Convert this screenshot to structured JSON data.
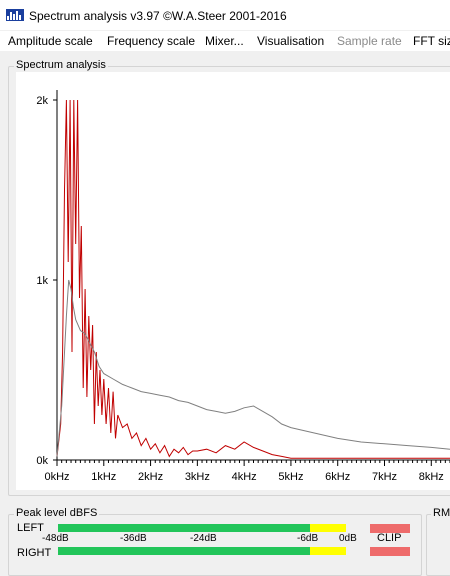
{
  "window": {
    "title": "Spectrum analysis v3.97  ©W.A.Steer 2001-2016",
    "icon": "spectrum-app-icon"
  },
  "menu": [
    {
      "label": "Amplitude scale",
      "enabled": true
    },
    {
      "label": "Frequency scale",
      "enabled": true
    },
    {
      "label": "Mixer...",
      "enabled": true
    },
    {
      "label": "Visualisation",
      "enabled": true
    },
    {
      "label": "Sample rate",
      "enabled": false
    },
    {
      "label": "FFT size",
      "enabled": true
    }
  ],
  "spectrum_panel": {
    "label": "Spectrum analysis"
  },
  "chart_data": {
    "type": "line",
    "title": "",
    "xlabel": "",
    "ylabel": "",
    "xlim": [
      0,
      8.4
    ],
    "ylim": [
      0,
      2.0
    ],
    "x_ticks": [
      "0kHz",
      "1kHz",
      "2kHz",
      "3kHz",
      "4kHz",
      "5kHz",
      "6kHz",
      "7kHz",
      "8kHz"
    ],
    "y_ticks": [
      "2k",
      "1k",
      "0k"
    ],
    "grid": false,
    "series": [
      {
        "color": "#c00000",
        "x": [
          0.0,
          0.08,
          0.12,
          0.16,
          0.2,
          0.24,
          0.28,
          0.32,
          0.36,
          0.4,
          0.44,
          0.48,
          0.52,
          0.56,
          0.6,
          0.64,
          0.68,
          0.72,
          0.76,
          0.8,
          0.84,
          0.88,
          0.92,
          0.96,
          1.0,
          1.05,
          1.1,
          1.15,
          1.2,
          1.25,
          1.3,
          1.4,
          1.5,
          1.6,
          1.7,
          1.8,
          1.9,
          2.0,
          2.1,
          2.2,
          2.3,
          2.4,
          2.5,
          2.6,
          2.7,
          2.8,
          2.9,
          3.0,
          3.2,
          3.4,
          3.6,
          3.8,
          4.0,
          4.2,
          4.4,
          4.6,
          4.8,
          5.0,
          5.5,
          6.0,
          6.5,
          7.0,
          7.5,
          8.0,
          8.4
        ],
        "y": [
          0.02,
          0.2,
          0.6,
          1.5,
          2.0,
          1.1,
          2.0,
          0.6,
          2.0,
          1.2,
          2.0,
          0.9,
          1.3,
          0.4,
          0.95,
          0.35,
          0.8,
          0.5,
          0.75,
          0.2,
          0.6,
          0.3,
          0.5,
          0.25,
          0.45,
          0.2,
          0.4,
          0.15,
          0.38,
          0.12,
          0.25,
          0.18,
          0.2,
          0.12,
          0.15,
          0.08,
          0.12,
          0.06,
          0.09,
          0.04,
          0.08,
          0.02,
          0.06,
          0.04,
          0.07,
          0.03,
          0.05,
          0.05,
          0.06,
          0.04,
          0.08,
          0.06,
          0.1,
          0.07,
          0.05,
          0.03,
          0.02,
          0.01,
          0.01,
          0.01,
          0.01,
          0.01,
          0.01,
          0.01,
          0.01
        ]
      },
      {
        "color": "#808080",
        "x": [
          0.0,
          0.1,
          0.2,
          0.25,
          0.3,
          0.35,
          0.4,
          0.5,
          0.6,
          0.7,
          0.8,
          0.9,
          1.0,
          1.2,
          1.4,
          1.6,
          1.8,
          2.0,
          2.2,
          2.4,
          2.6,
          2.8,
          3.0,
          3.2,
          3.4,
          3.6,
          3.8,
          4.0,
          4.2,
          4.4,
          4.6,
          4.8,
          5.0,
          5.5,
          6.0,
          6.5,
          7.0,
          7.5,
          8.0,
          8.4
        ],
        "y": [
          0.02,
          0.3,
          0.8,
          1.0,
          0.95,
          0.85,
          0.78,
          0.72,
          0.7,
          0.65,
          0.6,
          0.52,
          0.48,
          0.45,
          0.42,
          0.4,
          0.38,
          0.37,
          0.36,
          0.35,
          0.33,
          0.32,
          0.3,
          0.28,
          0.27,
          0.26,
          0.27,
          0.29,
          0.3,
          0.27,
          0.24,
          0.2,
          0.18,
          0.15,
          0.12,
          0.1,
          0.09,
          0.08,
          0.07,
          0.06
        ]
      }
    ]
  },
  "peak_panel": {
    "label": "Peak level dBFS",
    "left_label": "LEFT",
    "right_label": "RIGHT",
    "scale": [
      "-48dB",
      "-36dB",
      "-24dB",
      "-6dB",
      "0dB"
    ],
    "clip_label": "CLIP",
    "colors": {
      "green": "#22c55a",
      "yellow": "#ffff00",
      "clip": "#ee6b6b"
    }
  },
  "rms_panel": {
    "label": "RM"
  }
}
